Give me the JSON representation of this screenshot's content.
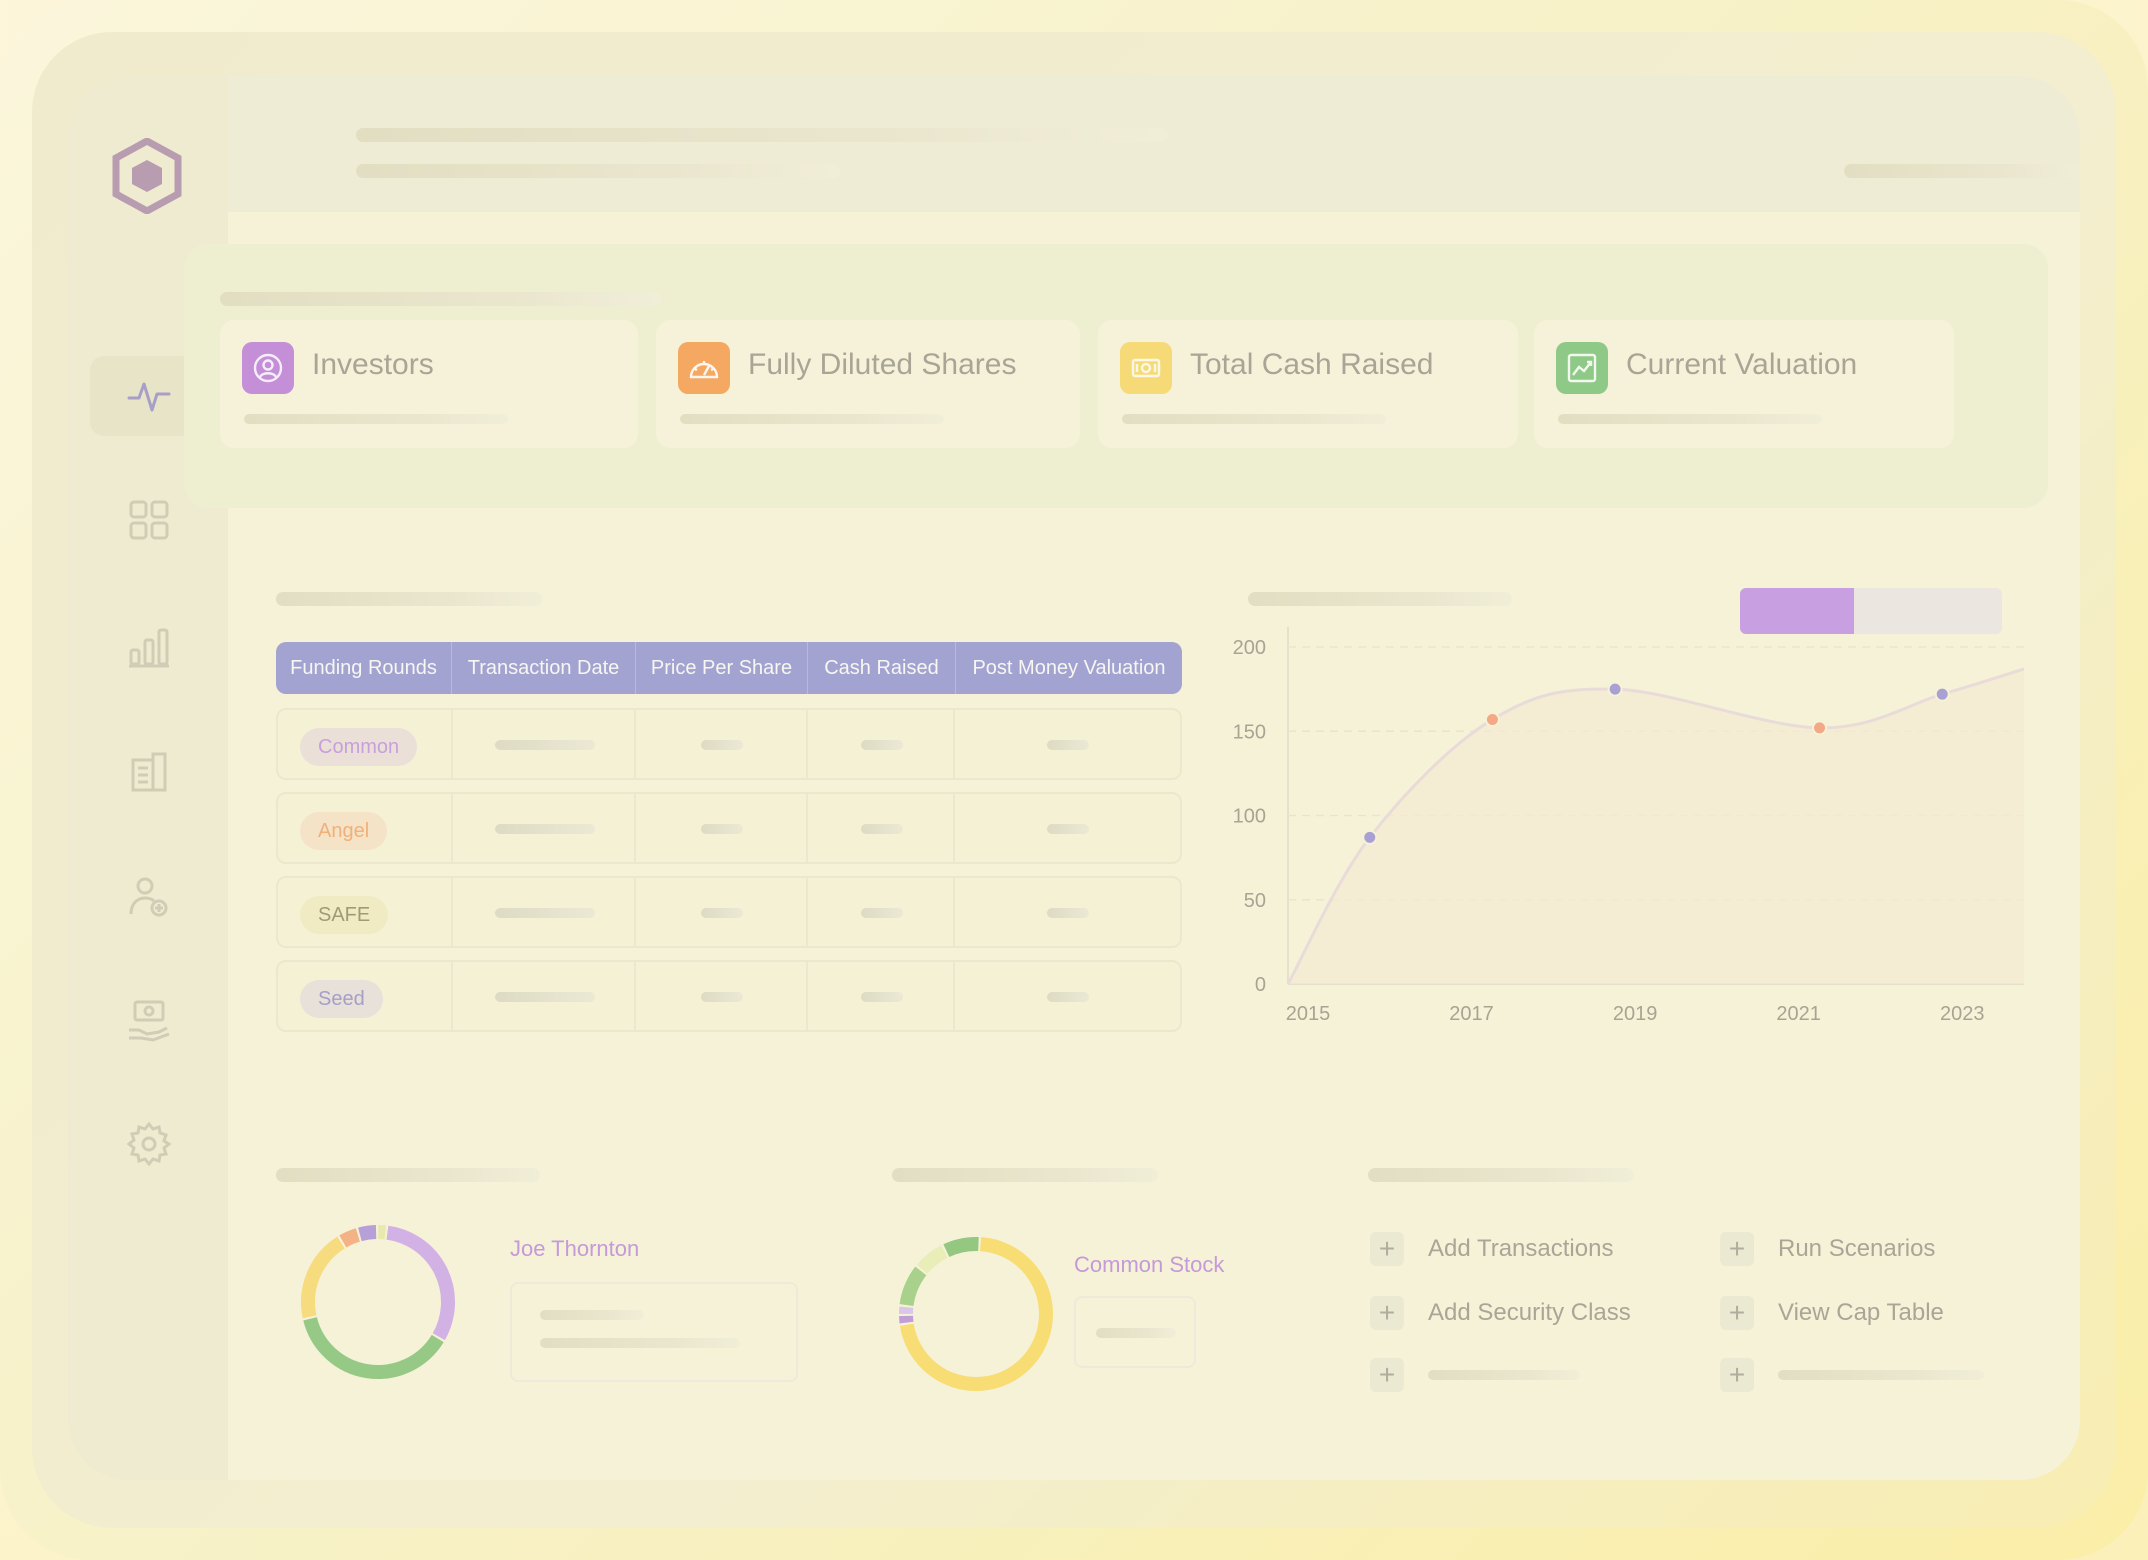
{
  "stats": [
    {
      "label": "Investors",
      "icon": "investor-icon",
      "color": "#c48fd6"
    },
    {
      "label": "Fully Diluted Shares",
      "icon": "gauge-icon",
      "color": "#f4a862"
    },
    {
      "label": "Total Cash Raised",
      "icon": "cash-icon",
      "color": "#f6da78"
    },
    {
      "label": "Current Valuation",
      "icon": "trend-icon",
      "color": "#8ec987"
    }
  ],
  "table": {
    "headers": [
      "Funding Rounds",
      "Transaction Date",
      "Price Per Share",
      "Cash Raised",
      "Post Money Valuation"
    ],
    "rows": [
      {
        "round": "Common",
        "badge_bg": "#ebe0d8",
        "badge_color": "#c89fdc"
      },
      {
        "round": "Angel",
        "badge_bg": "#f5e3c8",
        "badge_color": "#f0b07a"
      },
      {
        "round": "SAFE",
        "badge_bg": "#f1ebc3",
        "badge_color": "#a09a78"
      },
      {
        "round": "Seed",
        "badge_bg": "#e8e1da",
        "badge_color": "#a59fc8"
      }
    ]
  },
  "chart_data": {
    "type": "line",
    "x_ticks": [
      "2015",
      "2017",
      "2019",
      "2021",
      "2023"
    ],
    "y_ticks": [
      "0",
      "50",
      "100",
      "150",
      "200"
    ],
    "ylim": [
      0,
      200
    ],
    "xlim": [
      2015,
      2024
    ],
    "series": [
      {
        "values": [
          [
            2015,
            0
          ],
          [
            2016,
            87
          ],
          [
            2017.5,
            157
          ],
          [
            2019,
            175
          ],
          [
            2021.5,
            152
          ],
          [
            2023,
            172
          ],
          [
            2024,
            187
          ]
        ]
      }
    ],
    "points": [
      {
        "x": 2016,
        "y": 87,
        "color": "#a9a0d4"
      },
      {
        "x": 2017.5,
        "y": 157,
        "color": "#f3a986"
      },
      {
        "x": 2019,
        "y": 175,
        "color": "#a9a0d4"
      },
      {
        "x": 2021.5,
        "y": 152,
        "color": "#f3a986"
      },
      {
        "x": 2023,
        "y": 172,
        "color": "#a9a0d4"
      }
    ],
    "grid": true
  },
  "donut1": {
    "name": "Joe Thornton",
    "segments": [
      {
        "value": 30,
        "color": "#d2b2e4"
      },
      {
        "value": 36,
        "color": "#96c985"
      },
      {
        "value": 19,
        "color": "#f6dc7e"
      },
      {
        "value": 4,
        "color": "#f3b386"
      },
      {
        "value": 4,
        "color": "#b7a0d8"
      },
      {
        "value": 2,
        "color": "#e9e9ae"
      }
    ]
  },
  "donut2": {
    "name": "Common Stock",
    "segments": [
      {
        "value": 72,
        "color": "#f8dc74"
      },
      {
        "value": 2,
        "color": "#c29ed9"
      },
      {
        "value": 2,
        "color": "#d9c6ea"
      },
      {
        "value": 9,
        "color": "#a8d18c"
      },
      {
        "value": 7,
        "color": "#e9eeb8"
      },
      {
        "value": 8,
        "color": "#94c77f"
      }
    ]
  },
  "actions": [
    {
      "label": "Add Transactions"
    },
    {
      "label": "Run Scenarios"
    },
    {
      "label": "Add Security Class"
    },
    {
      "label": "View Cap Table"
    }
  ]
}
